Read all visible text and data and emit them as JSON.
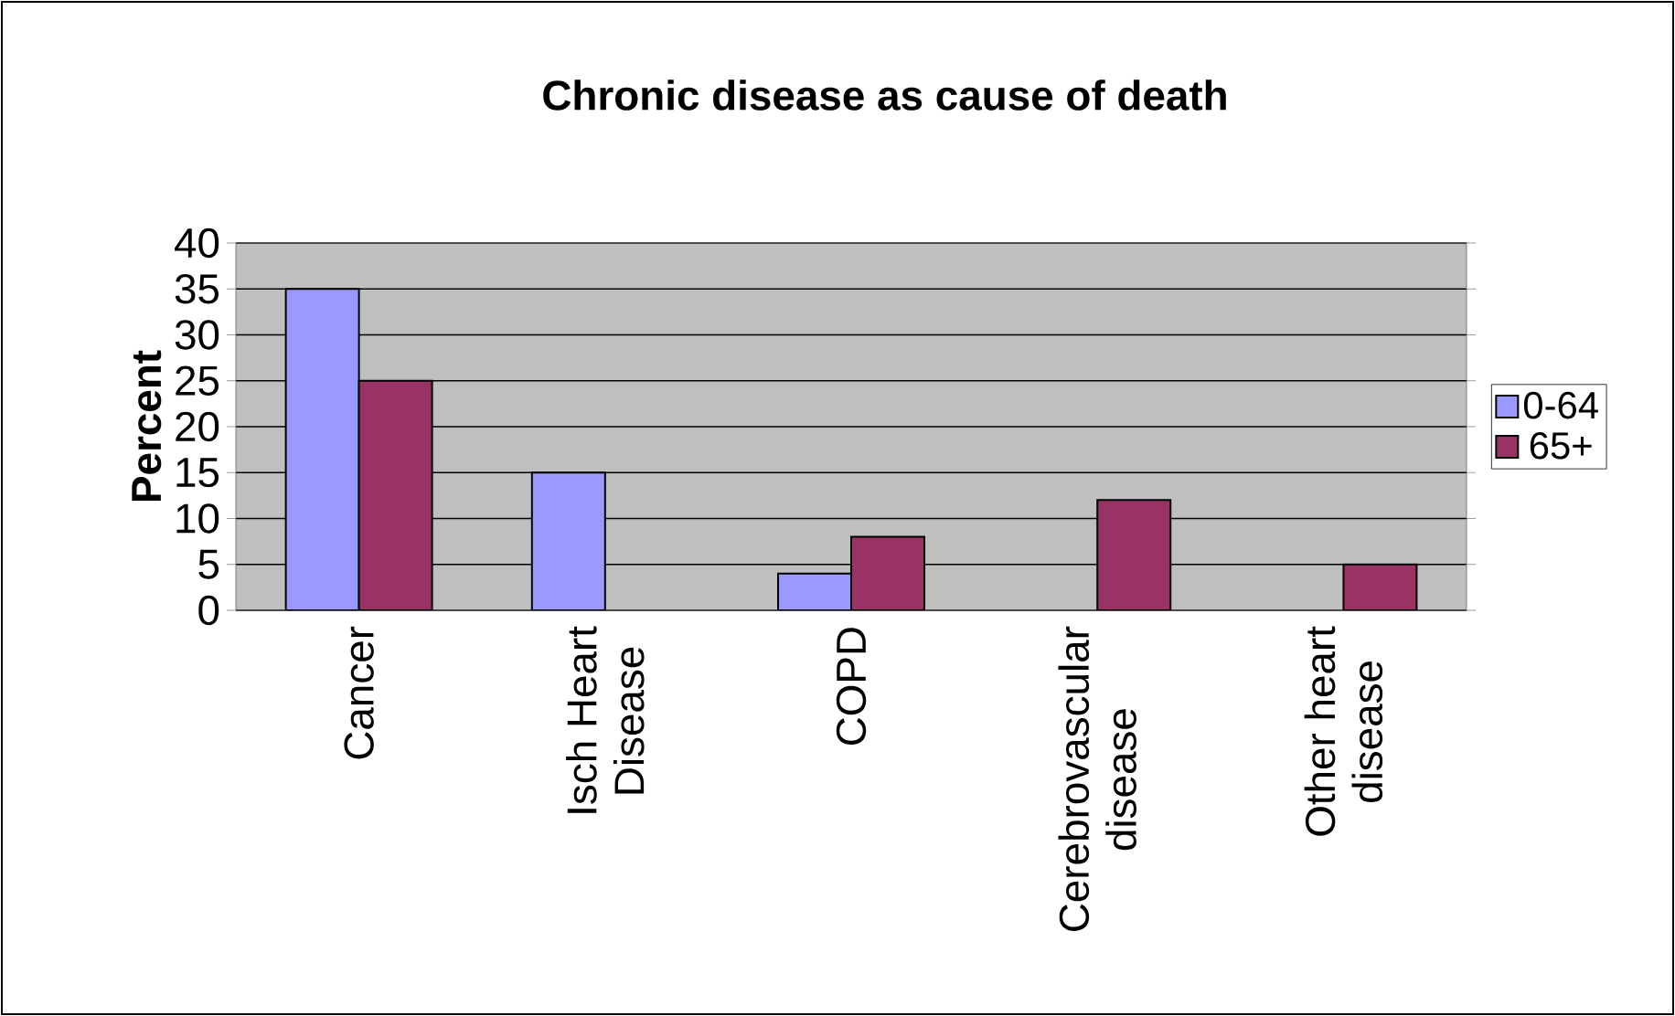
{
  "chart_data": {
    "type": "bar",
    "title": "Chronic disease as cause of death",
    "ylabel": "Percent",
    "categories": [
      "Cancer",
      "Isch Heart Disease",
      "COPD",
      "Cerebrovascular disease",
      "Other heart disease"
    ],
    "series": [
      {
        "name": "0-64",
        "color": "#9999ff",
        "values": [
          35,
          15,
          4,
          null,
          null
        ]
      },
      {
        "name": "65+",
        "color": "#993366",
        "values": [
          25,
          null,
          8,
          12,
          5
        ]
      }
    ],
    "ylim": [
      0,
      40
    ],
    "yticks": [
      0,
      5,
      10,
      15,
      20,
      25,
      30,
      35,
      40
    ],
    "grid": "y",
    "legend": "right"
  }
}
